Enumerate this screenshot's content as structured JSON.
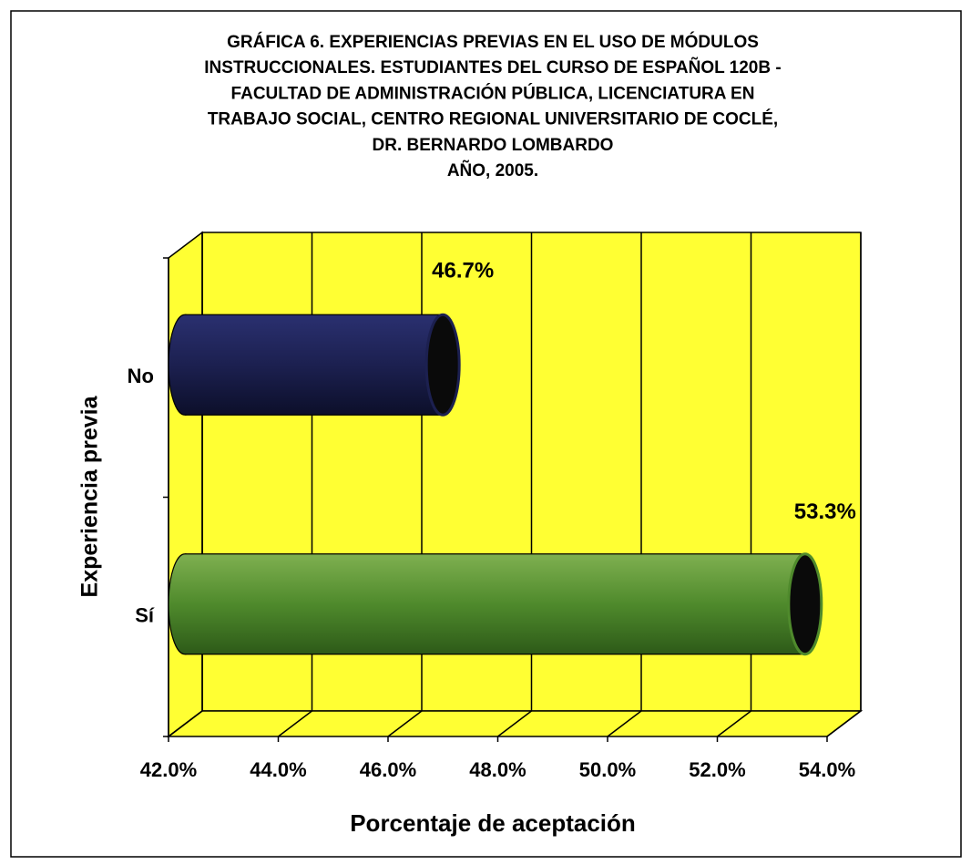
{
  "chart_data": {
    "type": "bar3d_horizontal",
    "title": [
      "GRÁFICA 6. EXPERIENCIAS PREVIAS EN EL USO DE MÓDULOS",
      "INSTRUCCIONALES.  ESTUDIANTES DEL CURSO DE ESPAÑOL 120B -",
      "FACULTAD DE ADMINISTRACIÓN PÚBLICA, LICENCIATURA EN",
      "TRABAJO SOCIAL,  CENTRO REGIONAL UNIVERSITARIO DE COCLÉ,",
      "DR. BERNARDO LOMBARDO",
      "AÑO, 2005."
    ],
    "categories": [
      "No",
      "Sí"
    ],
    "values": [
      46.7,
      53.3
    ],
    "value_labels": [
      "46.7%",
      "53.3%"
    ],
    "colors": [
      "#1c2050",
      "#4f8a2c"
    ],
    "wall_color": "#ffff33",
    "xlim": [
      42,
      54
    ],
    "xticks": [
      {
        "value": 42,
        "label": "42.0%"
      },
      {
        "value": 44,
        "label": "44.0%"
      },
      {
        "value": 46,
        "label": "46.0%"
      },
      {
        "value": 48,
        "label": "48.0%"
      },
      {
        "value": 50,
        "label": "50.0%"
      },
      {
        "value": 52,
        "label": "52.0%"
      },
      {
        "value": 54,
        "label": "54.0%"
      }
    ],
    "xlabel": "Porcentaje de aceptación",
    "ylabel": "Experiencia previa",
    "grid": true
  }
}
